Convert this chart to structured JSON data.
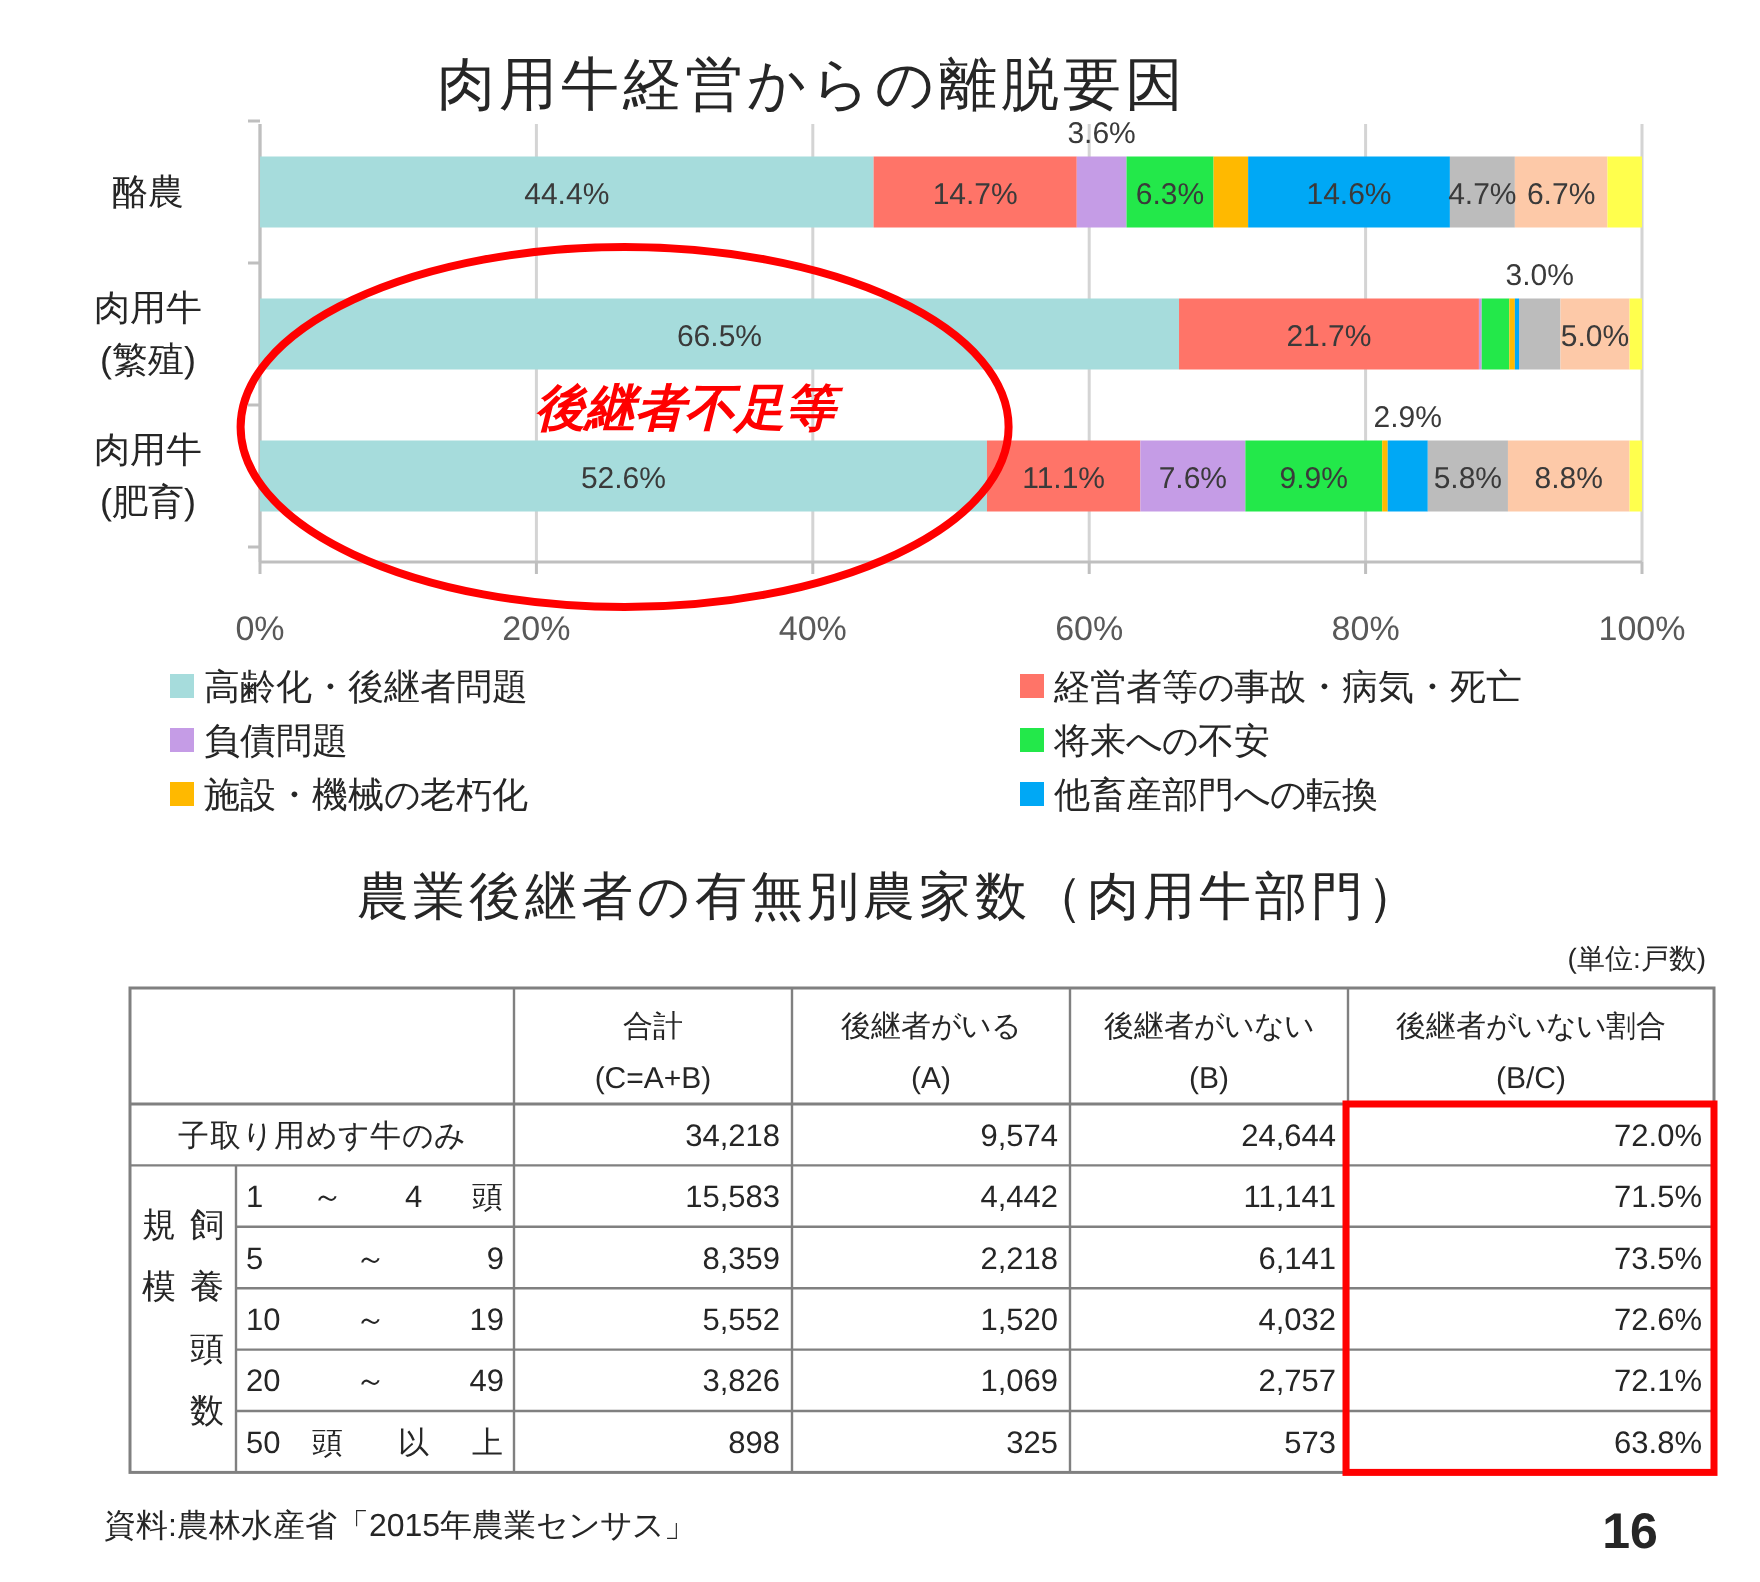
{
  "chart_data": [
    {
      "type": "bar",
      "orientation": "horizontal",
      "stacked": true,
      "title": "肉用牛経営からの離脱要因",
      "categories": [
        "酪農",
        "肉用牛\n(繁殖)",
        "肉用牛\n(肥育)"
      ],
      "series": [
        {
          "name": "高齢化・後継者問題",
          "color": "#a6dcdc",
          "values": [
            44.4,
            66.5,
            52.6
          ],
          "value_labels": [
            "44.4%",
            "66.5%",
            "52.6%"
          ]
        },
        {
          "name": "経営者等の事故・病気・死亡",
          "color": "#ff7468",
          "values": [
            14.7,
            21.7,
            11.1
          ],
          "value_labels": [
            "14.7%",
            "21.7%",
            "11.1%"
          ]
        },
        {
          "name": "負債問題",
          "color": "#c59ce6",
          "values": [
            3.6,
            0.2,
            7.6
          ],
          "value_labels": [
            "3.6%",
            null,
            "7.6%"
          ]
        },
        {
          "name": "将来への不安",
          "color": "#23e84a",
          "values": [
            6.3,
            2.0,
            9.9
          ],
          "value_labels": [
            "6.3%",
            null,
            "9.9%"
          ]
        },
        {
          "name": "施設・機械の老朽化",
          "color": "#ffb900",
          "values": [
            2.5,
            0.4,
            0.4
          ]
        },
        {
          "name": "他畜産部門への転換",
          "color": "#00a8f5",
          "values": [
            14.6,
            0.3,
            2.9
          ],
          "value_labels": [
            "14.6%",
            null,
            "2.9%"
          ]
        },
        {
          "color": "#bcbcbc",
          "values": [
            4.7,
            3.0,
            5.8
          ],
          "value_labels": [
            "4.7%",
            "3.0%",
            "5.8%"
          ]
        },
        {
          "color": "#fdc9a8",
          "values": [
            6.7,
            5.0,
            8.8
          ],
          "value_labels": [
            "6.7%",
            "5.0%",
            "8.8%"
          ]
        },
        {
          "color": "#ffff4d",
          "values": [
            2.5,
            0.9,
            0.9
          ]
        }
      ],
      "xlim": [
        0,
        100
      ],
      "xticks": [
        {
          "value": 0,
          "label": "0%"
        },
        {
          "value": 20,
          "label": "20%"
        },
        {
          "value": 40,
          "label": "40%"
        },
        {
          "value": 60,
          "label": "60%"
        },
        {
          "value": 80,
          "label": "80%"
        },
        {
          "value": 100,
          "label": "100%"
        }
      ],
      "grid": "x",
      "legend": "bottom",
      "annotations": [
        "後継者不足等"
      ]
    },
    {
      "type": "other",
      "title": "農業後継者の有無別農家数（肉用牛部門）",
      "categories": [
        "合計\n(C=A+B)",
        "後継者がいる\n(A)",
        "後継者がいない\n(B)",
        "後継者がいない割合\n(B/C)"
      ],
      "y_categories": [
        "子取り用めす牛のみ",
        "1 ～ 4 頭",
        "5 ～ 9",
        "10 ～ 19",
        "20 ～ 49",
        "50 頭 以 上"
      ],
      "ylabel": "飼養頭数規模",
      "cell_labels": [
        [
          "34,218",
          "9,574",
          "24,644",
          "72.0%"
        ],
        [
          "15,583",
          "4,442",
          "11,141",
          "71.5%"
        ],
        [
          "8,359",
          "2,218",
          "6,141",
          "73.5%"
        ],
        [
          "5,552",
          "1,520",
          "4,032",
          "72.6%"
        ],
        [
          "3,826",
          "1,069",
          "2,757",
          "72.1%"
        ],
        [
          "898",
          "325",
          "573",
          "63.8%"
        ]
      ],
      "annotations": [
        "(単位:戸数)",
        "資料:農林水産省「2015年農業センサス」",
        "16"
      ]
    }
  ]
}
